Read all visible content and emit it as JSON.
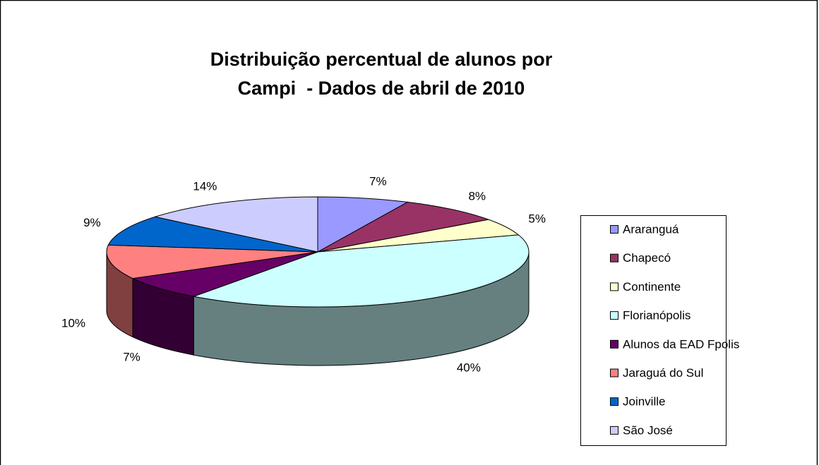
{
  "chart_data": {
    "type": "pie3d",
    "title": [
      "Distribuição percentual de alunos por",
      "Campi  - Dados de abril de 2010"
    ],
    "categories": [
      "Araranguá",
      "Chapecó",
      "Continente",
      "Florianópolis",
      "Alunos da EAD Fpolis",
      "Jaraguá do Sul",
      "Joinville",
      "São José"
    ],
    "values": [
      7,
      8,
      5,
      40,
      7,
      10,
      9,
      14
    ],
    "value_labels": [
      "7%",
      "8%",
      "5%",
      "40%",
      "7%",
      "10%",
      "9%",
      "14%"
    ],
    "colors": [
      "#9999ff",
      "#993366",
      "#ffffcc",
      "#ccffff",
      "#660066",
      "#ff8080",
      "#0066cc",
      "#ccccff"
    ],
    "legend": "right"
  }
}
